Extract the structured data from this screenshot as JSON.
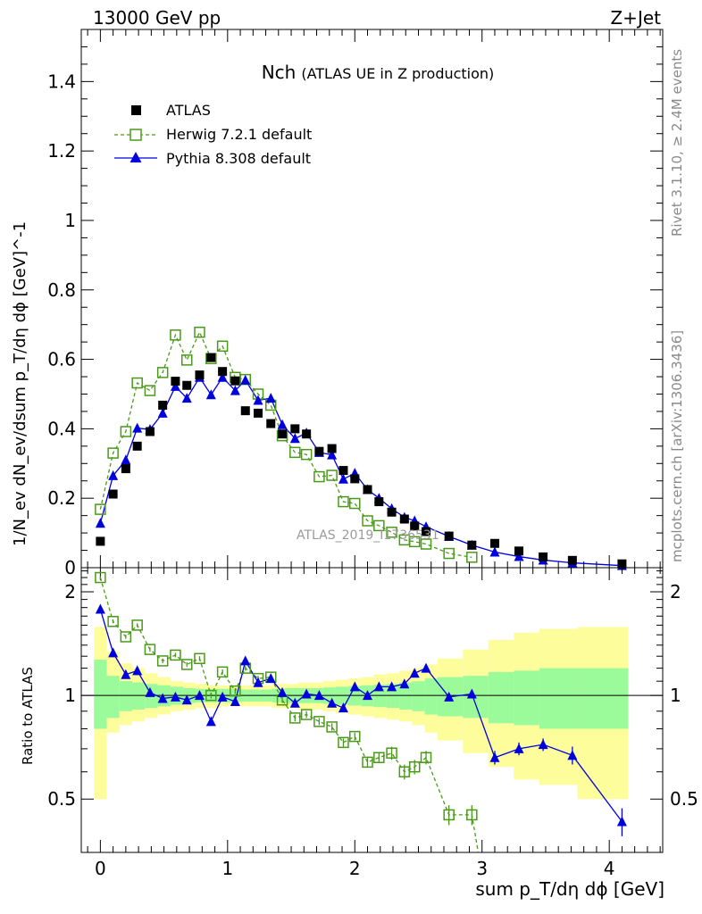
{
  "header": {
    "energy": "13000 GeV pp",
    "process": "Z+Jet",
    "title_main": "Nch",
    "title_sub": "(ATLAS UE in Z production)",
    "side_rivet": "Rivet 3.1.10, ≥ 2.4M events",
    "side_mcplots": "mcplots.cern.ch [arXiv:1306.3436]",
    "watermark": "ATLAS_2019_I1736531"
  },
  "colors": {
    "data": "#000000",
    "herwig": "#4a9a1a",
    "pythia": "#0000dd",
    "band_stat": "#9bfb9b",
    "band_total": "#fdfd9b"
  },
  "chart_data": [
    {
      "type": "scatter",
      "name": "main",
      "ylabel": "1/N_ev dN_ev/dsum p_T/dη dϕ [GeV]^-1",
      "xlim": [
        -0.15,
        4.42
      ],
      "ylim": [
        0,
        1.55
      ],
      "y_ticks": [
        {
          "v": 0,
          "label": "0"
        },
        {
          "v": 0.2,
          "label": "0.2"
        },
        {
          "v": 0.4,
          "label": "0.4"
        },
        {
          "v": 0.6,
          "label": "0.6"
        },
        {
          "v": 0.8,
          "label": "0.8"
        },
        {
          "v": 1.0,
          "label": "1"
        },
        {
          "v": 1.2,
          "label": "1.2"
        },
        {
          "v": 1.4,
          "label": "1.4"
        }
      ],
      "legend": [
        "ATLAS",
        "Herwig 7.2.1 default",
        "Pythia 8.308 default"
      ],
      "legend_position": "top-left",
      "series": [
        {
          "name": "ATLAS",
          "x": [
            0.0,
            0.1,
            0.2,
            0.29,
            0.39,
            0.49,
            0.59,
            0.68,
            0.78,
            0.87,
            0.96,
            1.06,
            1.14,
            1.24,
            1.34,
            1.43,
            1.53,
            1.62,
            1.72,
            1.82,
            1.91,
            2.0,
            2.1,
            2.19,
            2.29,
            2.39,
            2.47,
            2.56,
            2.74,
            2.92,
            3.1,
            3.29,
            3.48,
            3.71,
            4.1
          ],
          "y": [
            0.076,
            0.212,
            0.285,
            0.35,
            0.392,
            0.468,
            0.537,
            0.525,
            0.555,
            0.605,
            0.565,
            0.538,
            0.452,
            0.445,
            0.415,
            0.385,
            0.4,
            0.385,
            0.335,
            0.343,
            0.28,
            0.256,
            0.225,
            0.19,
            0.16,
            0.14,
            0.12,
            0.104,
            0.091,
            0.065,
            0.07,
            0.048,
            0.031,
            0.021,
            0.011
          ]
        },
        {
          "name": "Herwig 7.2.1 default",
          "x": [
            0.0,
            0.1,
            0.2,
            0.29,
            0.39,
            0.49,
            0.59,
            0.68,
            0.78,
            0.87,
            0.96,
            1.06,
            1.14,
            1.24,
            1.34,
            1.43,
            1.53,
            1.62,
            1.72,
            1.82,
            1.91,
            2.0,
            2.1,
            2.19,
            2.29,
            2.39,
            2.47,
            2.56,
            2.74,
            2.92
          ],
          "y": [
            0.168,
            0.33,
            0.392,
            0.532,
            0.51,
            0.562,
            0.67,
            0.598,
            0.678,
            0.602,
            0.638,
            0.548,
            0.542,
            0.5,
            0.468,
            0.38,
            0.332,
            0.326,
            0.262,
            0.266,
            0.19,
            0.185,
            0.135,
            0.121,
            0.102,
            0.08,
            0.075,
            0.068,
            0.041,
            0.03
          ]
        },
        {
          "name": "Pythia 8.308 default",
          "x": [
            0.0,
            0.1,
            0.2,
            0.29,
            0.39,
            0.49,
            0.59,
            0.68,
            0.78,
            0.87,
            0.96,
            1.06,
            1.14,
            1.24,
            1.34,
            1.43,
            1.53,
            1.62,
            1.72,
            1.82,
            1.91,
            2.0,
            2.1,
            2.19,
            2.29,
            2.39,
            2.47,
            2.56,
            2.74,
            2.92,
            3.1,
            3.29,
            3.48,
            3.71,
            4.1
          ],
          "y": [
            0.128,
            0.265,
            0.31,
            0.402,
            0.398,
            0.445,
            0.522,
            0.488,
            0.548,
            0.498,
            0.548,
            0.51,
            0.54,
            0.482,
            0.488,
            0.412,
            0.372,
            0.388,
            0.332,
            0.325,
            0.255,
            0.272,
            0.225,
            0.2,
            0.17,
            0.145,
            0.135,
            0.118,
            0.09,
            0.065,
            0.045,
            0.032,
            0.022,
            0.014,
            0.006
          ]
        }
      ]
    },
    {
      "type": "line",
      "name": "ratio",
      "ylabel": "Ratio to ATLAS",
      "xlabel": "sum p_T/dη dϕ [GeV]",
      "xlim": [
        -0.15,
        4.42
      ],
      "ylim": [
        0.35,
        2.35
      ],
      "x_ticks": [
        {
          "v": 0,
          "label": "0"
        },
        {
          "v": 1,
          "label": "1"
        },
        {
          "v": 2,
          "label": "2"
        },
        {
          "v": 3,
          "label": "3"
        },
        {
          "v": 4,
          "label": "4"
        }
      ],
      "y_ticks": [
        {
          "v": 0.5,
          "label": "0.5"
        },
        {
          "v": 1,
          "label": "1"
        },
        {
          "v": 2,
          "label": "2"
        }
      ],
      "band_edges": [
        -0.05,
        0.05,
        0.15,
        0.25,
        0.35,
        0.45,
        0.55,
        0.65,
        0.75,
        0.85,
        0.95,
        1.05,
        1.15,
        1.25,
        1.35,
        1.45,
        1.55,
        1.65,
        1.75,
        1.85,
        1.95,
        2.05,
        2.15,
        2.25,
        2.35,
        2.45,
        2.55,
        2.65,
        2.85,
        3.05,
        3.25,
        3.45,
        3.75,
        4.15
      ],
      "band_stat": [
        [
          0.8,
          1.27
        ],
        [
          0.86,
          1.14
        ],
        [
          0.9,
          1.1
        ],
        [
          0.91,
          1.09
        ],
        [
          0.92,
          1.08
        ],
        [
          0.93,
          1.07
        ],
        [
          0.94,
          1.06
        ],
        [
          0.95,
          1.05
        ],
        [
          0.955,
          1.045
        ],
        [
          0.955,
          1.045
        ],
        [
          0.955,
          1.045
        ],
        [
          0.96,
          1.04
        ],
        [
          0.96,
          1.04
        ],
        [
          0.96,
          1.04
        ],
        [
          0.955,
          1.045
        ],
        [
          0.95,
          1.05
        ],
        [
          0.95,
          1.05
        ],
        [
          0.95,
          1.05
        ],
        [
          0.945,
          1.055
        ],
        [
          0.94,
          1.06
        ],
        [
          0.935,
          1.065
        ],
        [
          0.93,
          1.07
        ],
        [
          0.925,
          1.075
        ],
        [
          0.92,
          1.08
        ],
        [
          0.91,
          1.09
        ],
        [
          0.9,
          1.1
        ],
        [
          0.88,
          1.12
        ],
        [
          0.87,
          1.13
        ],
        [
          0.86,
          1.14
        ],
        [
          0.83,
          1.17
        ],
        [
          0.82,
          1.18
        ],
        [
          0.8,
          1.2
        ],
        [
          0.8,
          1.2
        ]
      ],
      "band_total": [
        [
          0.5,
          1.58
        ],
        [
          0.78,
          1.34
        ],
        [
          0.82,
          1.24
        ],
        [
          0.84,
          1.2
        ],
        [
          0.86,
          1.16
        ],
        [
          0.88,
          1.13
        ],
        [
          0.9,
          1.1
        ],
        [
          0.91,
          1.09
        ],
        [
          0.92,
          1.08
        ],
        [
          0.92,
          1.07
        ],
        [
          0.93,
          1.07
        ],
        [
          0.93,
          1.07
        ],
        [
          0.93,
          1.07
        ],
        [
          0.93,
          1.07
        ],
        [
          0.92,
          1.08
        ],
        [
          0.92,
          1.08
        ],
        [
          0.91,
          1.09
        ],
        [
          0.91,
          1.09
        ],
        [
          0.9,
          1.1
        ],
        [
          0.89,
          1.11
        ],
        [
          0.88,
          1.12
        ],
        [
          0.87,
          1.13
        ],
        [
          0.86,
          1.15
        ],
        [
          0.85,
          1.16
        ],
        [
          0.84,
          1.18
        ],
        [
          0.82,
          1.2
        ],
        [
          0.78,
          1.23
        ],
        [
          0.74,
          1.28
        ],
        [
          0.68,
          1.36
        ],
        [
          0.62,
          1.45
        ],
        [
          0.57,
          1.52
        ],
        [
          0.55,
          1.56
        ],
        [
          0.5,
          1.58
        ]
      ],
      "series": [
        {
          "name": "Herwig 7.2.1 default",
          "x": [
            0.0,
            0.1,
            0.2,
            0.29,
            0.39,
            0.49,
            0.59,
            0.68,
            0.78,
            0.87,
            0.96,
            1.06,
            1.14,
            1.24,
            1.34,
            1.43,
            1.53,
            1.62,
            1.72,
            1.82,
            1.91,
            2.0,
            2.1,
            2.19,
            2.29,
            2.39,
            2.47,
            2.56,
            2.74,
            2.92
          ],
          "y": [
            2.2,
            1.64,
            1.48,
            1.6,
            1.36,
            1.26,
            1.31,
            1.23,
            1.28,
            1.0,
            1.17,
            1.03,
            1.2,
            1.12,
            1.13,
            0.97,
            0.86,
            0.88,
            0.84,
            0.81,
            0.73,
            0.76,
            0.64,
            0.66,
            0.68,
            0.6,
            0.62,
            0.66,
            0.45,
            0.45
          ],
          "err": [
            0.02,
            0.02,
            0.02,
            0.02,
            0.02,
            0.02,
            0.02,
            0.02,
            0.02,
            0.02,
            0.02,
            0.02,
            0.02,
            0.02,
            0.02,
            0.02,
            0.02,
            0.02,
            0.02,
            0.02,
            0.02,
            0.02,
            0.02,
            0.02,
            0.03,
            0.03,
            0.03,
            0.03,
            0.03,
            0.03
          ]
        },
        {
          "name": "Pythia 8.308 default",
          "x": [
            0.0,
            0.1,
            0.2,
            0.29,
            0.39,
            0.49,
            0.59,
            0.68,
            0.78,
            0.87,
            0.96,
            1.06,
            1.14,
            1.24,
            1.34,
            1.43,
            1.53,
            1.62,
            1.72,
            1.82,
            1.91,
            2.0,
            2.1,
            2.19,
            2.29,
            2.39,
            2.47,
            2.56,
            2.74,
            2.92,
            3.1,
            3.29,
            3.48,
            3.71,
            4.1
          ],
          "y": [
            1.78,
            1.33,
            1.15,
            1.18,
            1.02,
            0.98,
            0.99,
            0.97,
            1.0,
            0.84,
            0.99,
            0.96,
            1.26,
            1.09,
            1.12,
            1.02,
            0.95,
            1.01,
            1.0,
            0.95,
            0.92,
            1.06,
            1.0,
            1.06,
            1.06,
            1.08,
            1.16,
            1.2,
            0.99,
            1.01,
            0.66,
            0.7,
            0.72,
            0.67,
            0.43
          ],
          "err": [
            0.02,
            0.02,
            0.01,
            0.01,
            0.01,
            0.01,
            0.01,
            0.01,
            0.01,
            0.01,
            0.01,
            0.01,
            0.01,
            0.01,
            0.01,
            0.01,
            0.01,
            0.01,
            0.01,
            0.01,
            0.01,
            0.02,
            0.02,
            0.02,
            0.02,
            0.02,
            0.02,
            0.02,
            0.02,
            0.02,
            0.03,
            0.03,
            0.03,
            0.04,
            0.04
          ]
        }
      ]
    }
  ]
}
